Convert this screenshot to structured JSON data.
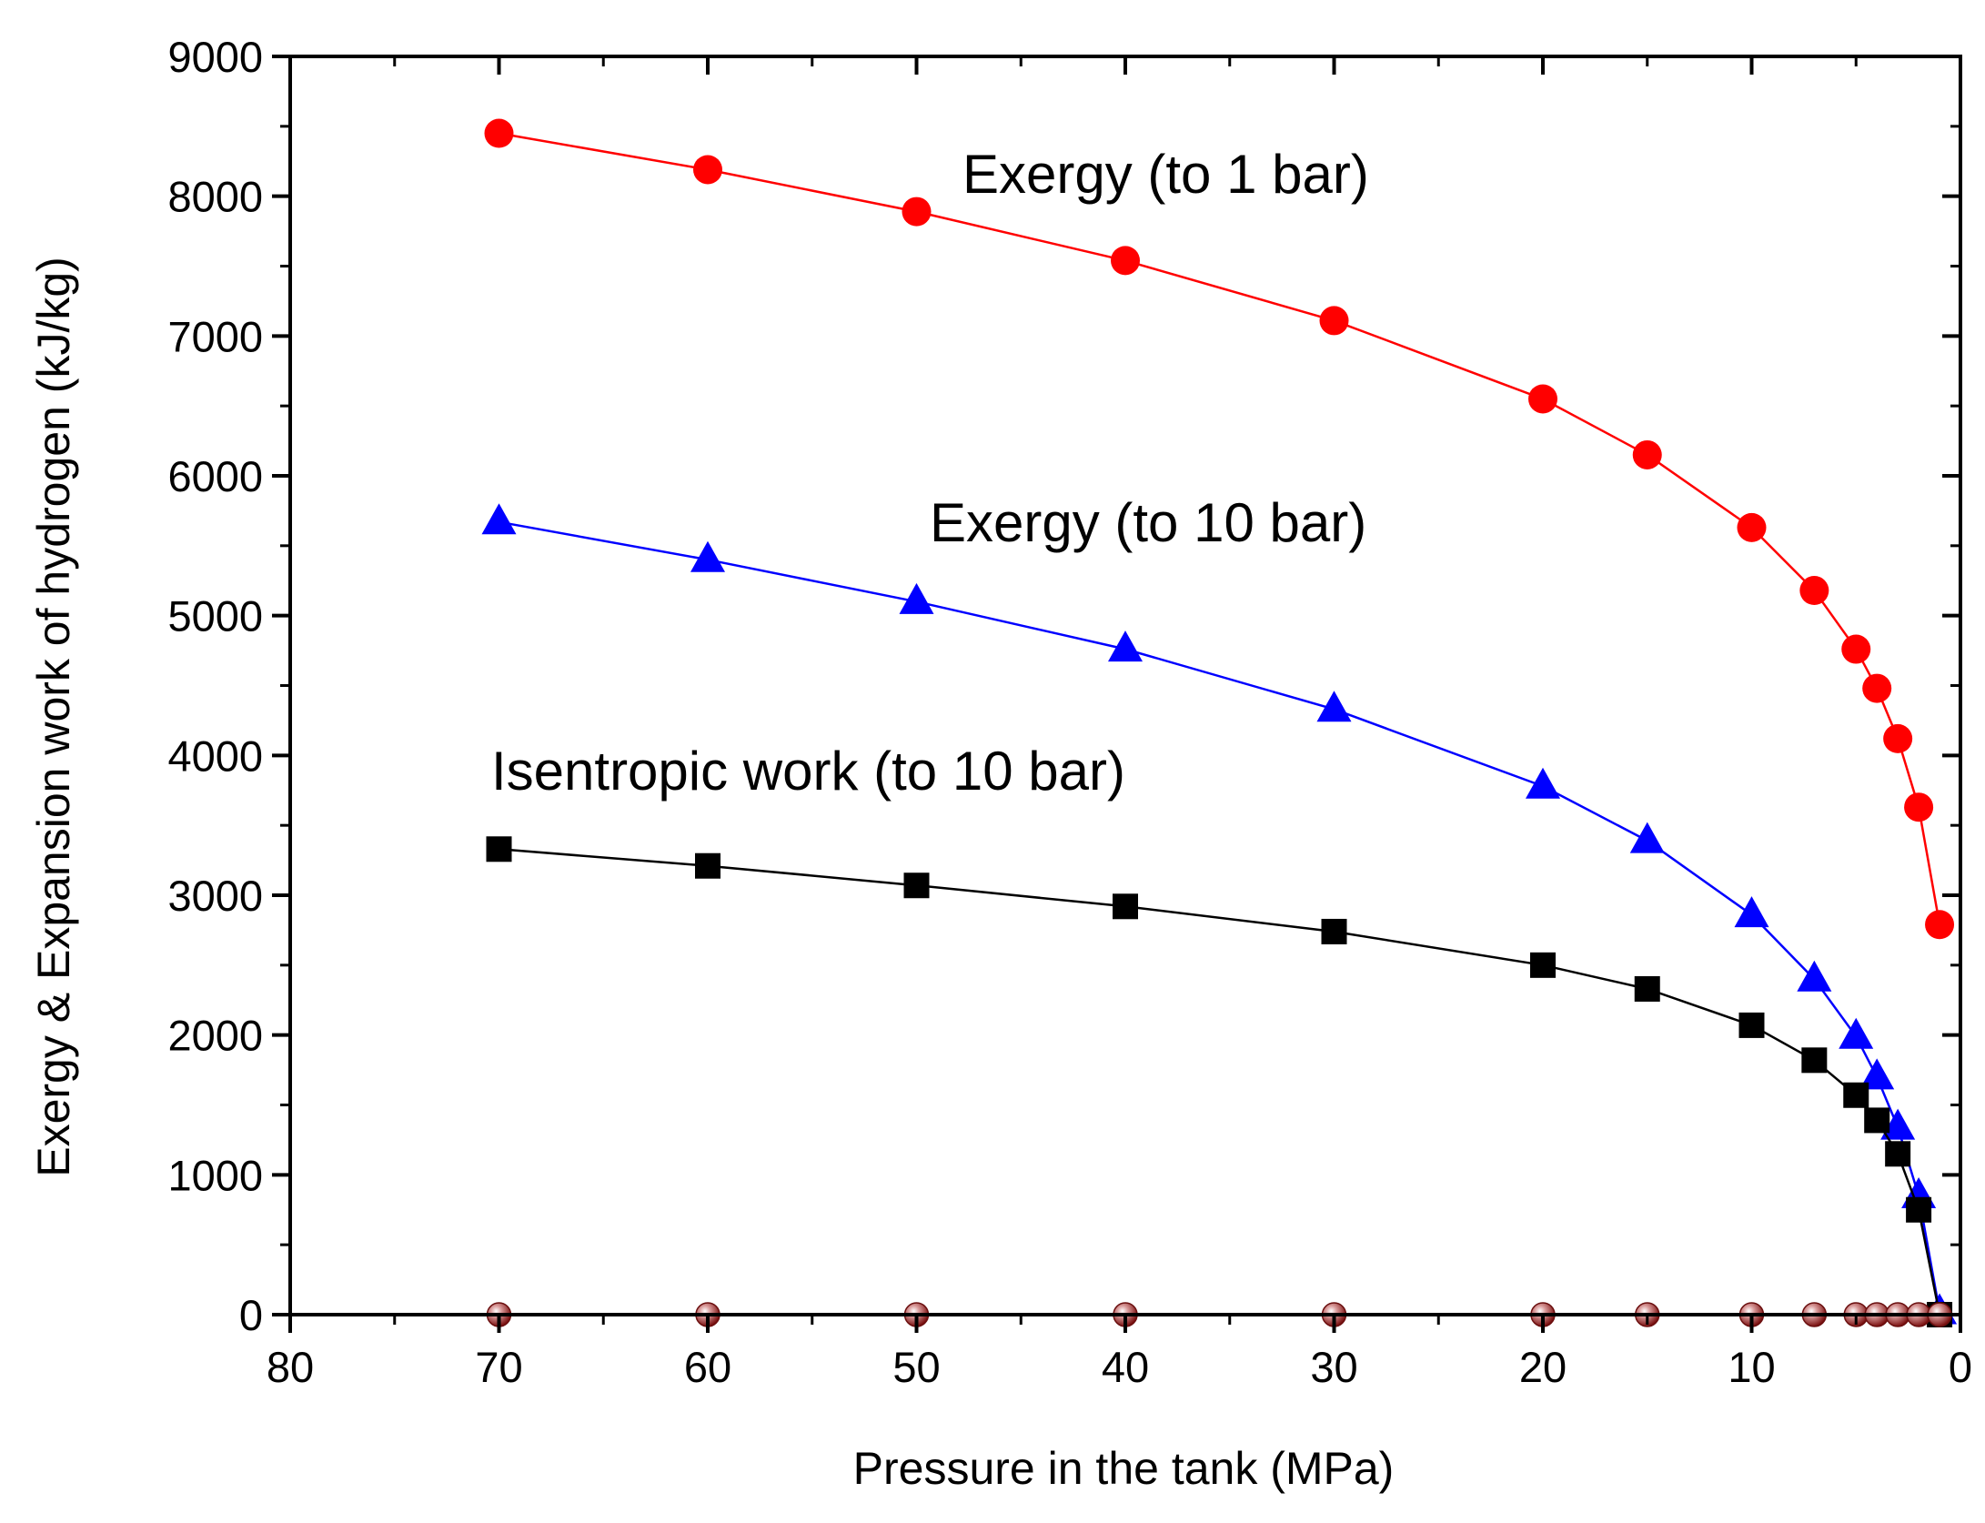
{
  "chart_data": {
    "type": "line",
    "title": "",
    "xlabel": "Pressure in the tank (MPa)",
    "ylabel": "Exergy & Expansion work of hydrogen (kJ/kg)",
    "xlim": [
      80,
      0
    ],
    "ylim": [
      0,
      9000
    ],
    "x_reversed": true,
    "grid": false,
    "legend": "none",
    "x_ticks": [
      "80",
      "70",
      "60",
      "50",
      "40",
      "30",
      "20",
      "10",
      "0"
    ],
    "y_ticks": [
      "0",
      "1000",
      "2000",
      "3000",
      "4000",
      "5000",
      "6000",
      "7000",
      "8000",
      "9000"
    ],
    "x": [
      70,
      60,
      50,
      40,
      30,
      20,
      15,
      10,
      7,
      5,
      4,
      3,
      2,
      1
    ],
    "series": [
      {
        "name": "Exergy (to 1 bar)",
        "marker": "circle",
        "color": "#ff0000",
        "values": [
          8450,
          8190,
          7890,
          7540,
          7110,
          6550,
          6150,
          5630,
          5180,
          4760,
          4480,
          4120,
          3630,
          2790
        ]
      },
      {
        "name": "Exergy (to 10 bar)",
        "marker": "triangle",
        "color": "#0000ff",
        "values": [
          5670,
          5400,
          5100,
          4760,
          4330,
          3780,
          3390,
          2860,
          2400,
          1990,
          1700,
          1340,
          850,
          20
        ]
      },
      {
        "name": "Isentropic work (to 10 bar)",
        "marker": "square",
        "color": "#000000",
        "values": [
          3330,
          3210,
          3070,
          2920,
          2740,
          2500,
          2330,
          2070,
          1820,
          1570,
          1390,
          1150,
          750,
          0
        ]
      },
      {
        "name": "",
        "marker": "sphere",
        "color": "#8b1a1a",
        "values": [
          0,
          0,
          0,
          0,
          0,
          0,
          0,
          0,
          0,
          0,
          0,
          0,
          0,
          0
        ]
      }
    ],
    "annotations": [
      {
        "text": "Exergy (to 1 bar)",
        "series": 0
      },
      {
        "text": "Exergy (to 10 bar)",
        "series": 1
      },
      {
        "text": "Isentropic work (to 10 bar)",
        "series": 2
      }
    ]
  }
}
